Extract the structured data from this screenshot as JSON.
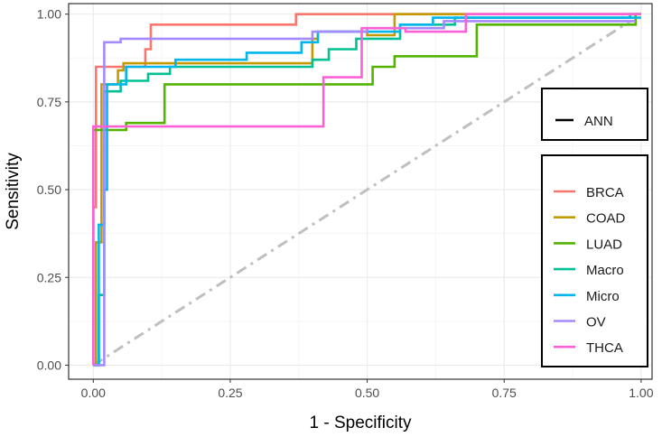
{
  "chart_data": {
    "type": "line",
    "title": "",
    "xlabel": "1 - Specificity",
    "ylabel": "Sensitivity",
    "xlim": [
      -0.045,
      1.02
    ],
    "ylim": [
      -0.04,
      1.03
    ],
    "x_ticks": [
      0.0,
      0.25,
      0.5,
      0.75,
      1.0
    ],
    "y_ticks": [
      0.0,
      0.25,
      0.5,
      0.75,
      1.0
    ],
    "x_tick_labels": [
      "0.00",
      "0.25",
      "0.50",
      "0.75",
      "1.00"
    ],
    "y_tick_labels": [
      "0.00",
      "0.25",
      "0.50",
      "0.75",
      "1.00"
    ],
    "grid": true,
    "background": "#ffffff",
    "gridline_color": "#ebebeb",
    "legend_placement": "right",
    "method_legend": {
      "label": "ANN",
      "color": "#000000"
    },
    "reference_line": {
      "points": [
        [
          0.0,
          0.0
        ],
        [
          0.98,
          0.98
        ]
      ],
      "color": "#bfbfbf",
      "style": "dash-dot"
    },
    "series": [
      {
        "name": "BRCA",
        "color": "#f8766d",
        "points": [
          [
            0.0,
            0.0
          ],
          [
            0.0,
            0.45
          ],
          [
            0.005,
            0.45
          ],
          [
            0.005,
            0.85
          ],
          [
            0.095,
            0.85
          ],
          [
            0.095,
            0.9
          ],
          [
            0.105,
            0.9
          ],
          [
            0.105,
            0.97
          ],
          [
            0.37,
            0.97
          ],
          [
            0.37,
            1.0
          ],
          [
            1.0,
            1.0
          ]
        ]
      },
      {
        "name": "COAD",
        "color": "#c49a00",
        "points": [
          [
            0.0,
            0.0
          ],
          [
            0.005,
            0.0
          ],
          [
            0.005,
            0.35
          ],
          [
            0.015,
            0.35
          ],
          [
            0.015,
            0.8
          ],
          [
            0.045,
            0.8
          ],
          [
            0.045,
            0.84
          ],
          [
            0.055,
            0.84
          ],
          [
            0.055,
            0.86
          ],
          [
            0.4,
            0.86
          ],
          [
            0.4,
            0.93
          ],
          [
            0.41,
            0.93
          ],
          [
            0.41,
            0.95
          ],
          [
            0.5,
            0.95
          ],
          [
            0.5,
            0.94
          ],
          [
            0.55,
            0.94
          ],
          [
            0.55,
            1.0
          ],
          [
            1.0,
            1.0
          ]
        ]
      },
      {
        "name": "LUAD",
        "color": "#53b400",
        "points": [
          [
            0.0,
            0.0
          ],
          [
            0.0,
            0.67
          ],
          [
            0.06,
            0.67
          ],
          [
            0.06,
            0.69
          ],
          [
            0.13,
            0.69
          ],
          [
            0.13,
            0.8
          ],
          [
            0.51,
            0.8
          ],
          [
            0.51,
            0.85
          ],
          [
            0.55,
            0.85
          ],
          [
            0.55,
            0.88
          ],
          [
            0.7,
            0.88
          ],
          [
            0.7,
            0.97
          ],
          [
            0.99,
            0.97
          ],
          [
            0.99,
            1.0
          ],
          [
            1.0,
            1.0
          ]
        ]
      },
      {
        "name": "Macro",
        "color": "#00c094",
        "points": [
          [
            0.0,
            0.0
          ],
          [
            0.01,
            0.0
          ],
          [
            0.01,
            0.2
          ],
          [
            0.02,
            0.2
          ],
          [
            0.02,
            0.78
          ],
          [
            0.05,
            0.78
          ],
          [
            0.05,
            0.81
          ],
          [
            0.1,
            0.81
          ],
          [
            0.1,
            0.83
          ],
          [
            0.14,
            0.83
          ],
          [
            0.14,
            0.85
          ],
          [
            0.4,
            0.85
          ],
          [
            0.4,
            0.87
          ],
          [
            0.43,
            0.87
          ],
          [
            0.43,
            0.9
          ],
          [
            0.48,
            0.9
          ],
          [
            0.48,
            0.93
          ],
          [
            0.56,
            0.93
          ],
          [
            0.56,
            0.97
          ],
          [
            0.66,
            0.97
          ],
          [
            0.66,
            0.99
          ],
          [
            0.98,
            0.99
          ],
          [
            0.98,
            1.0
          ],
          [
            1.0,
            1.0
          ]
        ]
      },
      {
        "name": "Micro",
        "color": "#00b6eb",
        "points": [
          [
            0.0,
            0.0
          ],
          [
            0.01,
            0.0
          ],
          [
            0.01,
            0.4
          ],
          [
            0.02,
            0.4
          ],
          [
            0.02,
            0.5
          ],
          [
            0.025,
            0.5
          ],
          [
            0.025,
            0.8
          ],
          [
            0.06,
            0.8
          ],
          [
            0.06,
            0.85
          ],
          [
            0.15,
            0.85
          ],
          [
            0.15,
            0.87
          ],
          [
            0.28,
            0.87
          ],
          [
            0.28,
            0.89
          ],
          [
            0.38,
            0.89
          ],
          [
            0.38,
            0.92
          ],
          [
            0.41,
            0.92
          ],
          [
            0.41,
            0.95
          ],
          [
            0.56,
            0.95
          ],
          [
            0.56,
            0.97
          ],
          [
            0.62,
            0.97
          ],
          [
            0.62,
            0.99
          ],
          [
            1.0,
            0.99
          ]
        ]
      },
      {
        "name": "OV",
        "color": "#a58aff",
        "points": [
          [
            0.0,
            0.0
          ],
          [
            0.02,
            0.0
          ],
          [
            0.02,
            0.92
          ],
          [
            0.05,
            0.92
          ],
          [
            0.05,
            0.93
          ],
          [
            0.4,
            0.93
          ],
          [
            0.4,
            0.95
          ],
          [
            0.5,
            0.95
          ],
          [
            0.5,
            0.96
          ],
          [
            0.64,
            0.96
          ],
          [
            0.64,
            0.98
          ],
          [
            0.99,
            0.98
          ]
        ]
      },
      {
        "name": "THCA",
        "color": "#fb61d7",
        "points": [
          [
            0.0,
            0.0
          ],
          [
            0.0,
            0.68
          ],
          [
            0.42,
            0.68
          ],
          [
            0.42,
            0.82
          ],
          [
            0.49,
            0.82
          ],
          [
            0.49,
            0.96
          ],
          [
            0.57,
            0.96
          ],
          [
            0.57,
            0.95
          ],
          [
            0.68,
            0.95
          ],
          [
            0.68,
            1.0
          ],
          [
            1.0,
            1.0
          ]
        ]
      }
    ]
  }
}
